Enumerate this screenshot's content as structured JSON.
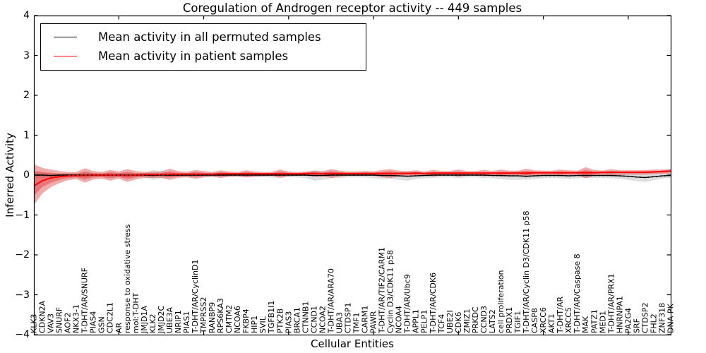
{
  "title": "Coregulation of Androgen receptor activity -- 449 samples",
  "axes": {
    "ylabel": "Inferred Activity",
    "xlabel": "Cellular Entities",
    "ylim": [
      -4,
      4
    ],
    "ytick_labels": [
      "4",
      "3",
      "2",
      "1",
      "0",
      "−1",
      "−2",
      "−3",
      "−4"
    ],
    "ytick_values": [
      4,
      3,
      2,
      1,
      0,
      -1,
      -2,
      -3,
      -4
    ],
    "xtick_every": 10
  },
  "legend": {
    "position": "upper left",
    "entries": [
      {
        "label": "Mean activity in all permuted samples",
        "color": "#000000"
      },
      {
        "label": "Mean activity in patient samples",
        "color": "#ff0000"
      }
    ]
  },
  "chart_data": {
    "type": "line",
    "title": "Coregulation of Androgen receptor activity -- 449 samples",
    "xlabel": "Cellular Entities",
    "ylabel": "Inferred Activity",
    "ylim": [
      -4,
      4
    ],
    "grid": false,
    "legend_position": "upper left",
    "categories": [
      "KLK3",
      "CDKN2A",
      "VAV3",
      "SNURF",
      "AOF2",
      "NKX3-1",
      "T-DHT/AR/SNURF",
      "PIAS4",
      "GSN",
      "CDC2L1",
      "AR",
      "response to oxidative stress",
      "mol:T-DHT",
      "JMJD1A",
      "KLK2",
      "JMJD2C",
      "UBE3A",
      "NRIP1",
      "PIAS1",
      "T-DHT/AR/CyclinD1",
      "TMPRSS2",
      "RANBP9",
      "RPS6KA3",
      "CMTM2",
      "NCOA6",
      "FKBP4",
      "HIP1",
      "SVIL",
      "TGFB1I1",
      "PTK2B",
      "PIAS3",
      "BRCA1",
      "CTNNB1",
      "CCND1",
      "NCOA2",
      "T-DHT/AR/ARA70",
      "UBA3",
      "CTDSP1",
      "TMF1",
      "CARM1",
      "PAWR",
      "T-DHT/AR/TIF2/CARM1",
      "Cyclin D3/CDK11 p58",
      "NCOA4",
      "T-DHT/AR/Ubc9",
      "APPL1",
      "PELP1",
      "T-DHT/AR/CDK6",
      "TCF4",
      "UBE2I",
      "CDK6",
      "ZMIZ1",
      "PRKDC",
      "CCND3",
      "LATS2",
      "cell proliferation",
      "PRDX1",
      "TGIF1",
      "T-DHT/AR/Cyclin D3/CDK11 p58",
      "CASP8",
      "XRCC6",
      "AKT1",
      "T-DHT/AR",
      "XRCC5",
      "T-DHT/AR/Caspase 8",
      "MAK",
      "PATZ1",
      "MED1",
      "T-DHT/AR/PRX1",
      "HNRNPA1",
      "PA2G4",
      "SRF",
      "CTDSP2",
      "FHL2",
      "ZNF318",
      "DNA-PK"
    ],
    "series": [
      {
        "name": "Mean activity in all permuted samples",
        "color": "#000000",
        "style": "solid-with-dot-overlay",
        "values": [
          0,
          0,
          -0.01,
          0,
          0,
          0,
          0,
          0,
          0,
          0,
          0,
          0,
          0,
          0,
          -0.01,
          0,
          0,
          0,
          0,
          0,
          0,
          0,
          0,
          0,
          0,
          0,
          0,
          0,
          0,
          0,
          0,
          0,
          0,
          -0.01,
          -0.01,
          0,
          0,
          0,
          0,
          0,
          0,
          -0.01,
          -0.01,
          -0.02,
          -0.03,
          -0.02,
          -0.01,
          0,
          0,
          0,
          0,
          0,
          0,
          0,
          -0.01,
          -0.01,
          -0.02,
          -0.02,
          -0.03,
          -0.02,
          -0.01,
          -0.01,
          -0.01,
          -0.02,
          -0.01,
          -0.01,
          -0.01,
          -0.01,
          -0.01,
          -0.02,
          -0.03,
          -0.05,
          -0.06,
          -0.04,
          -0.02,
          -0.01
        ]
      },
      {
        "name": "Mean activity in patient samples",
        "color": "#ff0000",
        "style": "solid",
        "values": [
          -0.27,
          -0.14,
          -0.07,
          -0.04,
          -0.02,
          -0.01,
          -0.01,
          0,
          0,
          0,
          0,
          -0.01,
          0,
          0.01,
          0.01,
          0.01,
          0.02,
          0.02,
          0.02,
          0.02,
          0.02,
          0.02,
          0.03,
          0.03,
          0.03,
          0.03,
          0.03,
          0.03,
          0.03,
          0.03,
          0.03,
          0.03,
          0.04,
          0.04,
          0.03,
          0.04,
          0.04,
          0.04,
          0.04,
          0.04,
          0.04,
          0.04,
          0.04,
          0.04,
          0.04,
          0.05,
          0.04,
          0.05,
          0.05,
          0.05,
          0.05,
          0.05,
          0.05,
          0.05,
          0.05,
          0.05,
          0.05,
          0.05,
          0.05,
          0.06,
          0.06,
          0.06,
          0.06,
          0.06,
          0.06,
          0.06,
          0.06,
          0.07,
          0.07,
          0.07,
          0.07,
          0.07,
          0.07,
          0.08,
          0.09,
          0.1
        ]
      }
    ],
    "bands": [
      {
        "name": "permuted samples range",
        "color": "#888888",
        "opacity": 0.28,
        "upper": [
          0.07,
          0.06,
          0.06,
          0.05,
          0.05,
          0.05,
          0.06,
          0.05,
          0.05,
          0.06,
          0.05,
          0.06,
          0.05,
          0.05,
          0.13,
          0.09,
          0.06,
          0.05,
          0.05,
          0.06,
          0.05,
          0.05,
          0.06,
          0.05,
          0.05,
          0.06,
          0.05,
          0.05,
          0.06,
          0.06,
          0.05,
          0.05,
          0.06,
          0.12,
          0.1,
          0.07,
          0.06,
          0.05,
          0.05,
          0.06,
          0.06,
          0.06,
          0.06,
          0.07,
          0.08,
          0.07,
          0.06,
          0.06,
          0.05,
          0.06,
          0.06,
          0.05,
          0.06,
          0.06,
          0.06,
          0.07,
          0.08,
          0.09,
          0.08,
          0.08,
          0.07,
          0.06,
          0.06,
          0.07,
          0.06,
          0.06,
          0.06,
          0.06,
          0.06,
          0.07,
          0.08,
          0.08,
          0.08,
          0.07,
          0.06,
          0.06
        ],
        "lower": [
          -0.08,
          -0.07,
          -0.06,
          -0.06,
          -0.05,
          -0.05,
          -0.06,
          -0.05,
          -0.05,
          -0.06,
          -0.05,
          -0.06,
          -0.05,
          -0.06,
          -0.12,
          -0.08,
          -0.06,
          -0.05,
          -0.06,
          -0.06,
          -0.05,
          -0.05,
          -0.06,
          -0.05,
          -0.05,
          -0.06,
          -0.05,
          -0.05,
          -0.06,
          -0.06,
          -0.05,
          -0.06,
          -0.07,
          -0.14,
          -0.12,
          -0.08,
          -0.07,
          -0.06,
          -0.06,
          -0.06,
          -0.08,
          -0.09,
          -0.1,
          -0.12,
          -0.14,
          -0.1,
          -0.08,
          -0.07,
          -0.06,
          -0.06,
          -0.07,
          -0.06,
          -0.06,
          -0.07,
          -0.08,
          -0.1,
          -0.12,
          -0.12,
          -0.11,
          -0.1,
          -0.08,
          -0.07,
          -0.08,
          -0.09,
          -0.08,
          -0.07,
          -0.07,
          -0.07,
          -0.08,
          -0.09,
          -0.12,
          -0.15,
          -0.17,
          -0.13,
          -0.09,
          -0.07
        ]
      },
      {
        "name": "patient samples outer range",
        "color": "#dd2222",
        "opacity": 0.38,
        "upper": [
          0.27,
          0.18,
          0.14,
          0.1,
          0.08,
          0.08,
          0.17,
          0.1,
          0.08,
          0.13,
          0.09,
          0.15,
          0.1,
          0.08,
          0.08,
          0.09,
          0.16,
          0.1,
          0.08,
          0.13,
          0.1,
          0.08,
          0.12,
          0.09,
          0.08,
          0.12,
          0.09,
          0.08,
          0.08,
          0.14,
          0.09,
          0.08,
          0.09,
          0.11,
          0.09,
          0.15,
          0.11,
          0.09,
          0.09,
          0.1,
          0.09,
          0.13,
          0.15,
          0.11,
          0.1,
          0.12,
          0.09,
          0.13,
          0.1,
          0.1,
          0.14,
          0.1,
          0.1,
          0.13,
          0.1,
          0.14,
          0.11,
          0.11,
          0.16,
          0.12,
          0.11,
          0.11,
          0.14,
          0.12,
          0.11,
          0.2,
          0.13,
          0.11,
          0.15,
          0.12,
          0.12,
          0.12,
          0.13,
          0.14,
          0.14,
          0.16
        ],
        "lower": [
          -0.75,
          -0.46,
          -0.3,
          -0.2,
          -0.13,
          -0.1,
          -0.19,
          -0.11,
          -0.09,
          -0.14,
          -0.09,
          -0.17,
          -0.11,
          -0.07,
          -0.07,
          -0.07,
          -0.12,
          -0.07,
          -0.05,
          -0.09,
          -0.06,
          -0.04,
          -0.07,
          -0.04,
          -0.03,
          -0.06,
          -0.04,
          -0.03,
          -0.02,
          -0.07,
          -0.03,
          -0.02,
          -0.02,
          -0.04,
          -0.03,
          -0.07,
          -0.04,
          -0.02,
          -0.02,
          -0.02,
          -0.02,
          -0.05,
          -0.07,
          -0.03,
          -0.02,
          -0.03,
          -0.01,
          -0.04,
          -0.01,
          -0.01,
          -0.04,
          -0.01,
          -0.01,
          -0.03,
          -0.01,
          -0.04,
          -0.02,
          -0.01,
          -0.06,
          -0.02,
          -0.01,
          0,
          -0.03,
          -0.01,
          0,
          -0.08,
          -0.02,
          0,
          -0.03,
          0,
          0.01,
          0.01,
          0.01,
          0.02,
          0.03,
          0.04
        ]
      },
      {
        "name": "patient samples inner range",
        "color": "#dd2222",
        "opacity": 0.38,
        "upper": [
          0.1,
          0.08,
          0.05,
          0.03,
          0.03,
          0.03,
          0.09,
          0.05,
          0.04,
          0.07,
          0.05,
          0.08,
          0.05,
          0.05,
          0.05,
          0.05,
          0.09,
          0.06,
          0.05,
          0.08,
          0.06,
          0.05,
          0.07,
          0.06,
          0.05,
          0.08,
          0.06,
          0.05,
          0.05,
          0.09,
          0.06,
          0.05,
          0.06,
          0.07,
          0.06,
          0.1,
          0.07,
          0.06,
          0.06,
          0.07,
          0.06,
          0.08,
          0.1,
          0.07,
          0.07,
          0.08,
          0.06,
          0.08,
          0.07,
          0.07,
          0.09,
          0.07,
          0.07,
          0.08,
          0.07,
          0.09,
          0.08,
          0.08,
          0.11,
          0.08,
          0.08,
          0.08,
          0.09,
          0.08,
          0.08,
          0.13,
          0.09,
          0.08,
          0.1,
          0.09,
          0.09,
          0.09,
          0.09,
          0.1,
          0.11,
          0.12
        ],
        "lower": [
          -0.52,
          -0.3,
          -0.19,
          -0.12,
          -0.08,
          -0.06,
          -0.11,
          -0.06,
          -0.05,
          -0.08,
          -0.05,
          -0.1,
          -0.06,
          -0.03,
          -0.03,
          -0.03,
          -0.06,
          -0.03,
          -0.02,
          -0.04,
          -0.02,
          -0.01,
          -0.02,
          -0.01,
          0,
          -0.02,
          0,
          0.01,
          0.01,
          -0.02,
          0,
          0.01,
          0.01,
          0,
          0.01,
          -0.02,
          0.01,
          0.02,
          0.02,
          0.02,
          0.02,
          0,
          -0.02,
          0.01,
          0.02,
          0.01,
          0.02,
          0.01,
          0.02,
          0.02,
          0.01,
          0.02,
          0.03,
          0.02,
          0.03,
          0.01,
          0.02,
          0.03,
          0,
          0.03,
          0.03,
          0.04,
          0.02,
          0.04,
          0.04,
          -0.01,
          0.03,
          0.04,
          0.03,
          0.05,
          0.05,
          0.05,
          0.05,
          0.06,
          0.06,
          0.07
        ]
      }
    ]
  }
}
